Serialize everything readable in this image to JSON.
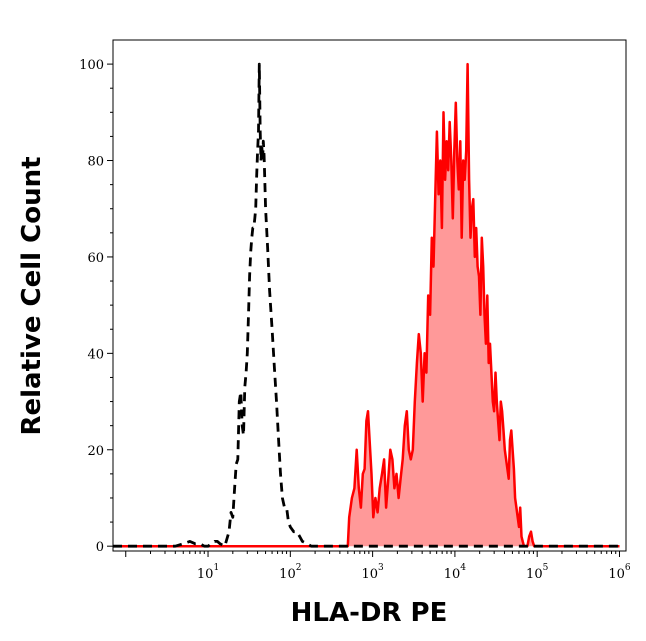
{
  "chart_data": {
    "type": "area",
    "xlabel": "HLA-DR PE",
    "ylabel": "Relative Cell Count",
    "xscale": "log",
    "xlim": [
      0.7,
      1200000
    ],
    "ylim": [
      -1,
      105
    ],
    "x_ticks": [
      {
        "base": "10",
        "exp": "1",
        "value": 10
      },
      {
        "base": "10",
        "exp": "2",
        "value": 100
      },
      {
        "base": "10",
        "exp": "3",
        "value": 1000
      },
      {
        "base": "10",
        "exp": "4",
        "value": 10000
      },
      {
        "base": "10",
        "exp": "5",
        "value": 100000
      },
      {
        "base": "10",
        "exp": "6",
        "value": 1000000
      }
    ],
    "y_ticks": [
      "0",
      "20",
      "40",
      "60",
      "80",
      "100"
    ],
    "grid": false,
    "legend": "none",
    "series": [
      {
        "style": "dashed",
        "color": "#000000",
        "fill": "none",
        "points": [
          [
            0.7,
            0
          ],
          [
            1.5,
            0
          ],
          [
            2.2,
            0
          ],
          [
            3,
            0
          ],
          [
            4,
            0
          ],
          [
            5,
            0.5
          ],
          [
            6,
            1
          ],
          [
            7,
            0.5
          ],
          [
            8,
            0.5
          ],
          [
            9,
            0
          ],
          [
            10,
            0
          ],
          [
            11,
            0.5
          ],
          [
            12,
            1
          ],
          [
            13,
            1
          ],
          [
            14,
            0.5
          ],
          [
            16,
            0
          ],
          [
            18,
            3
          ],
          [
            19,
            7
          ],
          [
            20,
            6
          ],
          [
            21,
            12
          ],
          [
            22,
            17
          ],
          [
            23,
            18
          ],
          [
            24,
            30
          ],
          [
            25,
            32
          ],
          [
            26,
            25
          ],
          [
            27,
            23
          ],
          [
            28,
            33
          ],
          [
            29,
            36
          ],
          [
            30,
            40
          ],
          [
            31,
            48
          ],
          [
            32,
            56
          ],
          [
            33,
            61
          ],
          [
            34,
            64
          ],
          [
            35,
            66
          ],
          [
            36,
            66
          ],
          [
            37,
            68
          ],
          [
            38,
            70
          ],
          [
            39,
            77
          ],
          [
            40,
            82
          ],
          [
            41,
            86
          ],
          [
            42,
            100
          ],
          [
            43,
            86
          ],
          [
            44,
            80
          ],
          [
            45,
            83
          ],
          [
            46,
            80
          ],
          [
            47,
            84
          ],
          [
            48,
            81
          ],
          [
            50,
            70
          ],
          [
            53,
            62
          ],
          [
            56,
            53
          ],
          [
            60,
            45
          ],
          [
            64,
            37
          ],
          [
            68,
            30
          ],
          [
            72,
            22
          ],
          [
            76,
            15
          ],
          [
            80,
            10
          ],
          [
            85,
            8
          ],
          [
            90,
            8
          ],
          [
            95,
            5
          ],
          [
            100,
            4
          ],
          [
            110,
            3
          ],
          [
            120,
            3
          ],
          [
            130,
            2
          ],
          [
            140,
            1
          ],
          [
            160,
            0.5
          ],
          [
            180,
            0
          ],
          [
            250,
            0
          ],
          [
            300,
            0
          ],
          [
            400,
            0
          ],
          [
            500,
            0
          ],
          [
            1000000,
            0
          ]
        ]
      },
      {
        "style": "solid",
        "color": "#ff0000",
        "fill": "#ff9999",
        "points": [
          [
            0.7,
            0
          ],
          [
            400,
            0
          ],
          [
            500,
            0
          ],
          [
            520,
            6
          ],
          [
            560,
            10
          ],
          [
            600,
            12
          ],
          [
            640,
            20
          ],
          [
            680,
            12
          ],
          [
            720,
            8
          ],
          [
            760,
            15
          ],
          [
            800,
            16
          ],
          [
            840,
            26
          ],
          [
            880,
            28
          ],
          [
            920,
            22
          ],
          [
            970,
            15
          ],
          [
            1020,
            6
          ],
          [
            1080,
            10
          ],
          [
            1150,
            7
          ],
          [
            1220,
            12
          ],
          [
            1300,
            15
          ],
          [
            1380,
            18
          ],
          [
            1460,
            8
          ],
          [
            1550,
            14
          ],
          [
            1640,
            20
          ],
          [
            1740,
            18
          ],
          [
            1840,
            12
          ],
          [
            1950,
            15
          ],
          [
            2070,
            10
          ],
          [
            2190,
            14
          ],
          [
            2320,
            18
          ],
          [
            2460,
            25
          ],
          [
            2600,
            28
          ],
          [
            2750,
            20
          ],
          [
            2910,
            18
          ],
          [
            3080,
            20
          ],
          [
            3260,
            30
          ],
          [
            3450,
            38
          ],
          [
            3640,
            44
          ],
          [
            3850,
            40
          ],
          [
            4060,
            30
          ],
          [
            4280,
            40
          ],
          [
            4510,
            36
          ],
          [
            4740,
            52
          ],
          [
            4990,
            48
          ],
          [
            5240,
            64
          ],
          [
            5500,
            58
          ],
          [
            5770,
            73
          ],
          [
            6050,
            86
          ],
          [
            6340,
            73
          ],
          [
            6640,
            80
          ],
          [
            6950,
            66
          ],
          [
            7270,
            90
          ],
          [
            7600,
            76
          ],
          [
            7940,
            84
          ],
          [
            8290,
            78
          ],
          [
            8650,
            88
          ],
          [
            9030,
            80
          ],
          [
            9420,
            68
          ],
          [
            9830,
            82
          ],
          [
            10250,
            92
          ],
          [
            10700,
            80
          ],
          [
            11150,
            74
          ],
          [
            11620,
            84
          ],
          [
            12110,
            64
          ],
          [
            12620,
            80
          ],
          [
            13150,
            76
          ],
          [
            13700,
            82
          ],
          [
            14270,
            100
          ],
          [
            14860,
            76
          ],
          [
            15470,
            64
          ],
          [
            16100,
            70
          ],
          [
            16750,
            72
          ],
          [
            17430,
            60
          ],
          [
            18130,
            66
          ],
          [
            18860,
            58
          ],
          [
            19610,
            56
          ],
          [
            20400,
            48
          ],
          [
            21210,
            64
          ],
          [
            22050,
            58
          ],
          [
            22920,
            48
          ],
          [
            23820,
            42
          ],
          [
            24760,
            52
          ],
          [
            25730,
            38
          ],
          [
            26730,
            42
          ],
          [
            27770,
            36
          ],
          [
            28850,
            30
          ],
          [
            29960,
            28
          ],
          [
            31110,
            36
          ],
          [
            32300,
            30
          ],
          [
            33530,
            26
          ],
          [
            34810,
            22
          ],
          [
            36130,
            30
          ],
          [
            37500,
            28
          ],
          [
            38910,
            24
          ],
          [
            40370,
            20
          ],
          [
            41880,
            18
          ],
          [
            43450,
            16
          ],
          [
            45060,
            14
          ],
          [
            46730,
            22
          ],
          [
            48450,
            24
          ],
          [
            50230,
            20
          ],
          [
            52070,
            16
          ],
          [
            53960,
            10
          ],
          [
            55920,
            8
          ],
          [
            57940,
            6
          ],
          [
            60020,
            4
          ],
          [
            62170,
            8
          ],
          [
            64390,
            2
          ],
          [
            66680,
            1
          ],
          [
            69040,
            0
          ],
          [
            72000,
            0
          ],
          [
            76000,
            0
          ],
          [
            80000,
            2
          ],
          [
            84000,
            3
          ],
          [
            88000,
            1
          ],
          [
            92000,
            0
          ],
          [
            96000,
            0
          ],
          [
            100000,
            0
          ],
          [
            110000,
            0
          ],
          [
            120000,
            0
          ],
          [
            1000000,
            0
          ]
        ]
      }
    ]
  }
}
